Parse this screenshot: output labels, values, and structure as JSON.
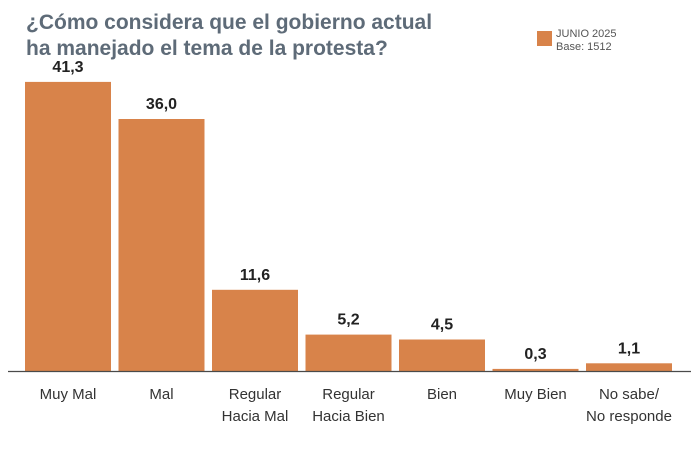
{
  "colors": {
    "bar": "#d8834a",
    "title": "#5e6b78",
    "axis": "#4a4a4a",
    "text": "#333333"
  },
  "chart_data": {
    "type": "bar",
    "title_lines": [
      "¿Cómo considera que el gobierno actual",
      "ha manejado el tema de la protesta?"
    ],
    "legend": {
      "series": "JUNIO 2025",
      "base": "Base: 1512"
    },
    "categories": [
      [
        "Muy Mal"
      ],
      [
        "Mal"
      ],
      [
        "Regular",
        "Hacia Mal"
      ],
      [
        "Regular",
        "Hacia Bien"
      ],
      [
        "Bien"
      ],
      [
        "Muy Bien"
      ],
      [
        "No sabe/",
        "No responde"
      ]
    ],
    "values": [
      41.3,
      36.0,
      11.6,
      5.2,
      4.5,
      0.3,
      1.1
    ],
    "value_labels": [
      "41,3",
      "36,0",
      "11,6",
      "5,2",
      "4,5",
      "0,3",
      "1,1"
    ],
    "ylim": [
      0,
      45
    ]
  }
}
